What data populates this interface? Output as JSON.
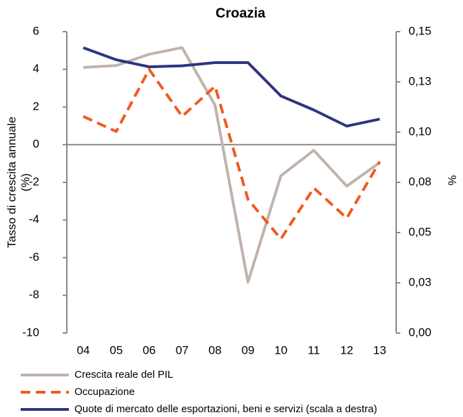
{
  "chart_data": {
    "type": "line",
    "title": "Croazia",
    "categories": [
      "04",
      "05",
      "06",
      "07",
      "08",
      "09",
      "10",
      "11",
      "12",
      "13"
    ],
    "ylabel": [
      "Tasso di crescita annuale",
      "(%)"
    ],
    "y2label": "%",
    "ylim": [
      -10,
      6
    ],
    "yticks": [
      -10,
      -8,
      -6,
      -4,
      -2,
      0,
      2,
      4,
      6
    ],
    "y2lim": [
      0,
      0.15
    ],
    "y2ticks": [
      {
        "value": 0,
        "label": "0,00"
      },
      {
        "value": 0.025,
        "label": "0,03"
      },
      {
        "value": 0.05,
        "label": "0,05"
      },
      {
        "value": 0.075,
        "label": "0,08"
      },
      {
        "value": 0.1,
        "label": "0,10"
      },
      {
        "value": 0.125,
        "label": "0,13"
      },
      {
        "value": 0.15,
        "label": "0,15"
      }
    ],
    "series": [
      {
        "name": "Crescita reale del PIL",
        "color": "#bfb3ab",
        "dash": false,
        "values": [
          4.1,
          4.2,
          4.8,
          5.15,
          2.1,
          -7.3,
          -1.65,
          -0.3,
          -2.2,
          -0.95
        ]
      },
      {
        "name": "Occupazione",
        "color": "#f05a22",
        "dash": true,
        "values": [
          1.5,
          0.7,
          4.0,
          1.5,
          3.1,
          -2.9,
          -5.0,
          -2.3,
          -3.9,
          -0.9
        ]
      },
      {
        "name": "Quote di mercato delle esportazioni, beni e servizi (scala a destra)",
        "color": "#2e3580",
        "dash": false,
        "axis": "y2",
        "values": [
          0.142,
          0.136,
          0.1325,
          0.133,
          0.1346,
          0.1346,
          0.118,
          0.111,
          0.103,
          0.1065
        ]
      }
    ]
  }
}
